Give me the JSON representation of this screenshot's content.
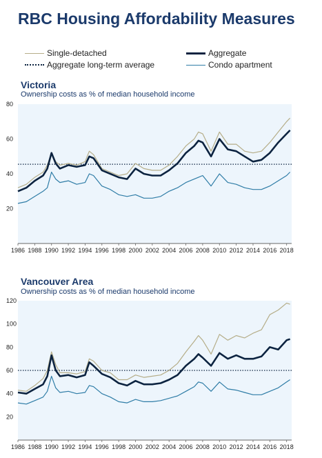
{
  "title": "RBC Housing Affordability Measures",
  "legend": [
    {
      "name": "Single-detached",
      "color": "#b5ad88",
      "style": "solid"
    },
    {
      "name": "Aggregate",
      "color": "#0c2340",
      "style": "bold"
    },
    {
      "name": "Aggregate long-term average",
      "color": "#0c2340",
      "style": "dotted"
    },
    {
      "name": "Condo apartment",
      "color": "#2e7ca6",
      "style": "solid"
    }
  ],
  "colors": {
    "single": "#b5ad88",
    "aggregate": "#0c2340",
    "condo": "#2e7ca6",
    "plot_bg": "#edf5fc",
    "title": "#1b3a6b"
  },
  "chart_data": [
    {
      "type": "line",
      "title": "Victoria",
      "subtitle": "Ownership costs as % of median household income",
      "xlim": [
        1986,
        2018.6
      ],
      "ylim": [
        0,
        80
      ],
      "yticks": [
        20,
        40,
        60,
        80
      ],
      "xticks": [
        1986,
        1988,
        1990,
        1992,
        1994,
        1996,
        1998,
        2000,
        2002,
        2004,
        2006,
        2008,
        2010,
        2012,
        2014,
        2016,
        2018
      ],
      "long_term_average": 45.5,
      "x": [
        1986,
        1987,
        1988,
        1989,
        1989.5,
        1990,
        1990.5,
        1991,
        1992,
        1993,
        1994,
        1994.5,
        1995,
        1996,
        1997,
        1998,
        1999,
        2000,
        2001,
        2002,
        2003,
        2004,
        2005,
        2006,
        2007,
        2007.5,
        2008,
        2009,
        2010,
        2011,
        2012,
        2013,
        2014,
        2015,
        2016,
        2017,
        2018,
        2018.4
      ],
      "series": [
        {
          "name": "Single-detached",
          "key": "single",
          "values": [
            32,
            34,
            38,
            41,
            45,
            52,
            47,
            45,
            46,
            45,
            47,
            53,
            51,
            43,
            41,
            39,
            40,
            46,
            43,
            42,
            42,
            45,
            50,
            56,
            60,
            64,
            63,
            53,
            64,
            57,
            57,
            53,
            52,
            53,
            58,
            64,
            70,
            72
          ]
        },
        {
          "name": "Aggregate",
          "key": "aggregate",
          "values": [
            30,
            32,
            36,
            39,
            43,
            52,
            46,
            43,
            45,
            44,
            45,
            50,
            49,
            42,
            40,
            38,
            37,
            43,
            40,
            39,
            39,
            42,
            46,
            52,
            56,
            59,
            58,
            50,
            60,
            54,
            53,
            50,
            47,
            48,
            52,
            58,
            63,
            65
          ]
        },
        {
          "name": "Condo apartment",
          "key": "condo",
          "values": [
            23,
            24,
            27,
            30,
            32,
            41,
            37,
            35,
            36,
            34,
            35,
            40,
            39,
            33,
            31,
            28,
            27,
            28,
            26,
            26,
            27,
            30,
            32,
            35,
            37,
            38,
            39,
            33,
            40,
            35,
            34,
            32,
            31,
            31,
            33,
            36,
            39,
            41
          ]
        }
      ]
    },
    {
      "type": "line",
      "title": "Vancouver Area",
      "subtitle": "Ownership costs as % of median household income",
      "xlim": [
        1986,
        2018.6
      ],
      "ylim": [
        0,
        120
      ],
      "yticks": [
        20,
        40,
        60,
        80,
        100,
        120
      ],
      "xticks": [
        1986,
        1988,
        1990,
        1992,
        1994,
        1996,
        1998,
        2000,
        2002,
        2004,
        2006,
        2008,
        2010,
        2012,
        2014,
        2016,
        2018
      ],
      "long_term_average": 60,
      "x": [
        1986,
        1987,
        1988,
        1989,
        1989.5,
        1990,
        1990.5,
        1991,
        1992,
        1993,
        1994,
        1994.5,
        1995,
        1996,
        1997,
        1998,
        1999,
        2000,
        2001,
        2002,
        2003,
        2004,
        2005,
        2006,
        2007,
        2007.5,
        2008,
        2009,
        2010,
        2011,
        2012,
        2013,
        2014,
        2015,
        2016,
        2017,
        2018,
        2018.4
      ],
      "series": [
        {
          "name": "Single-detached",
          "key": "single",
          "values": [
            43,
            42,
            47,
            53,
            60,
            76,
            65,
            58,
            58,
            57,
            59,
            70,
            68,
            60,
            58,
            52,
            52,
            56,
            54,
            55,
            56,
            60,
            66,
            76,
            85,
            90,
            86,
            74,
            91,
            86,
            90,
            88,
            92,
            95,
            108,
            112,
            118,
            117
          ]
        },
        {
          "name": "Aggregate",
          "key": "aggregate",
          "values": [
            41,
            40,
            44,
            48,
            55,
            73,
            60,
            55,
            56,
            54,
            56,
            67,
            64,
            57,
            54,
            49,
            47,
            51,
            48,
            48,
            49,
            52,
            56,
            64,
            70,
            74,
            71,
            64,
            75,
            70,
            73,
            70,
            70,
            72,
            80,
            78,
            86,
            87
          ]
        },
        {
          "name": "Condo apartment",
          "key": "condo",
          "values": [
            32,
            31,
            34,
            37,
            42,
            55,
            45,
            41,
            42,
            40,
            41,
            47,
            46,
            40,
            37,
            33,
            32,
            35,
            33,
            33,
            34,
            36,
            38,
            42,
            46,
            50,
            49,
            42,
            50,
            44,
            43,
            41,
            39,
            39,
            42,
            45,
            50,
            52
          ]
        }
      ]
    }
  ]
}
